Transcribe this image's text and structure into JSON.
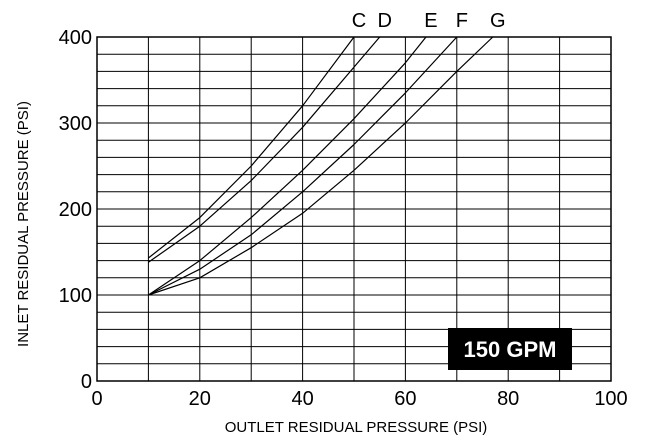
{
  "chart_data": {
    "type": "line",
    "xlabel": "OUTLET RESIDUAL PRESSURE (PSI)",
    "ylabel": "INLET RESIDUAL PRESSURE (PSI)",
    "xlim": [
      0,
      100
    ],
    "ylim": [
      0,
      400
    ],
    "x_ticks": [
      "0",
      "20",
      "40",
      "60",
      "80",
      "100"
    ],
    "y_ticks": [
      "0",
      "100",
      "200",
      "300",
      "400"
    ],
    "grid": true,
    "annotation": "150 GPM",
    "series": [
      {
        "name": "C",
        "x": [
          10,
          20,
          30,
          40,
          50
        ],
        "y": [
          143,
          190,
          250,
          320,
          400
        ]
      },
      {
        "name": "D",
        "x": [
          10,
          20,
          30,
          40,
          50,
          55
        ],
        "y": [
          138,
          180,
          233,
          295,
          365,
          400
        ]
      },
      {
        "name": "E",
        "x": [
          10,
          20,
          30,
          40,
          50,
          60,
          64
        ],
        "y": [
          100,
          140,
          190,
          245,
          305,
          370,
          400
        ]
      },
      {
        "name": "F",
        "x": [
          10,
          20,
          30,
          40,
          50,
          60,
          70
        ],
        "y": [
          100,
          130,
          170,
          220,
          275,
          335,
          400
        ]
      },
      {
        "name": "G",
        "x": [
          10,
          20,
          30,
          40,
          50,
          60,
          70,
          77
        ],
        "y": [
          100,
          120,
          155,
          195,
          245,
          300,
          360,
          400
        ]
      }
    ]
  },
  "colors": {
    "line": "#000000",
    "badge_bg": "#000000",
    "badge_text": "#ffffff"
  }
}
